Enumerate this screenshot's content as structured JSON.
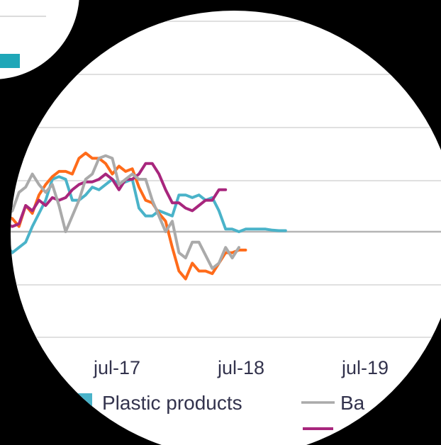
{
  "chart_data": {
    "type": "line",
    "x_ticks": [
      "jul-17",
      "jul-18",
      "jul-19"
    ],
    "grid": true,
    "legend_position": "bottom",
    "series": [
      {
        "name": "Plastic products",
        "color": "#4ab3c9",
        "points": [
          [
            0,
            -2.5
          ],
          [
            0.5,
            -4
          ],
          [
            1,
            -3
          ],
          [
            1.5,
            -2
          ],
          [
            2,
            1
          ],
          [
            2.5,
            3.5
          ],
          [
            3,
            6
          ],
          [
            3.5,
            10
          ],
          [
            4,
            10.5
          ],
          [
            4.5,
            10
          ],
          [
            5,
            6
          ],
          [
            5.5,
            6
          ],
          [
            6,
            7
          ],
          [
            6.5,
            8.5
          ],
          [
            7,
            8
          ],
          [
            7.5,
            9
          ],
          [
            8,
            10
          ],
          [
            8.5,
            9
          ],
          [
            9,
            9.5
          ],
          [
            9.5,
            10
          ],
          [
            10,
            4.5
          ],
          [
            10.5,
            3
          ],
          [
            11,
            3
          ],
          [
            11.5,
            4
          ],
          [
            12,
            3.5
          ],
          [
            12.5,
            3
          ],
          [
            13,
            7
          ],
          [
            13.5,
            7
          ],
          [
            14,
            6.5
          ],
          [
            14.5,
            7
          ],
          [
            15,
            6
          ],
          [
            15.5,
            6.5
          ],
          [
            16,
            4
          ],
          [
            16.5,
            0.5
          ],
          [
            17,
            0.5
          ],
          [
            17.5,
            0
          ],
          [
            18,
            0.5
          ],
          [
            18.5,
            0.5
          ],
          [
            19,
            0.5
          ],
          [
            19.5,
            0.5
          ],
          [
            20,
            0.3
          ],
          [
            20.5,
            0.2
          ],
          [
            21,
            0.2
          ]
        ]
      },
      {
        "name": "",
        "color": "#ff6b1a",
        "points": [
          [
            0,
            3
          ],
          [
            0.5,
            2.5
          ],
          [
            1,
            1
          ],
          [
            1.5,
            5
          ],
          [
            2,
            3.5
          ],
          [
            2.5,
            7
          ],
          [
            3,
            9
          ],
          [
            3.5,
            10.5
          ],
          [
            4,
            11.5
          ],
          [
            4.5,
            11.5
          ],
          [
            5,
            11
          ],
          [
            5.5,
            14
          ],
          [
            6,
            15
          ],
          [
            6.5,
            14
          ],
          [
            7,
            14
          ],
          [
            7.5,
            13
          ],
          [
            8,
            11
          ],
          [
            8.5,
            12.5
          ],
          [
            9,
            11.5
          ],
          [
            9.5,
            12
          ],
          [
            10,
            8.5
          ],
          [
            10.5,
            6
          ],
          [
            11,
            5.5
          ],
          [
            11.5,
            3.5
          ],
          [
            12,
            2
          ],
          [
            12.5,
            -3
          ],
          [
            13,
            -7.5
          ],
          [
            13.5,
            -9
          ],
          [
            14,
            -6
          ],
          [
            14.5,
            -7.5
          ],
          [
            15,
            -7.5
          ],
          [
            15.5,
            -8
          ],
          [
            16,
            -6
          ],
          [
            16.5,
            -4
          ],
          [
            17,
            -4
          ],
          [
            17.5,
            -3.5
          ],
          [
            18,
            -3.5
          ]
        ]
      },
      {
        "name": "",
        "color": "#a8267d",
        "points": [
          [
            0,
            1.5
          ],
          [
            0.5,
            1
          ],
          [
            1,
            1.5
          ],
          [
            1.5,
            5
          ],
          [
            2,
            4
          ],
          [
            2.5,
            6
          ],
          [
            3,
            5
          ],
          [
            3.5,
            6.5
          ],
          [
            4,
            6
          ],
          [
            4.5,
            6.5
          ],
          [
            5,
            8
          ],
          [
            5.5,
            9
          ],
          [
            6,
            9.5
          ],
          [
            6.5,
            9.5
          ],
          [
            7,
            10
          ],
          [
            7.5,
            11
          ],
          [
            8,
            10
          ],
          [
            8.5,
            8
          ],
          [
            9,
            10
          ],
          [
            9.5,
            10
          ],
          [
            10,
            11
          ],
          [
            10.5,
            13
          ],
          [
            11,
            13
          ],
          [
            11.5,
            11
          ],
          [
            12,
            8
          ],
          [
            12.5,
            5.5
          ],
          [
            13,
            5.5
          ],
          [
            13.5,
            4.5
          ],
          [
            14,
            4
          ],
          [
            14.5,
            5
          ],
          [
            15,
            6
          ],
          [
            15.5,
            6
          ],
          [
            16,
            8
          ],
          [
            16.5,
            8
          ]
        ]
      },
      {
        "name": "Ba",
        "color": "#aaaaaa",
        "points": [
          [
            0,
            3
          ],
          [
            0.5,
            4
          ],
          [
            1,
            7.5
          ],
          [
            1.5,
            8.5
          ],
          [
            2,
            11
          ],
          [
            2.5,
            9
          ],
          [
            3,
            7.5
          ],
          [
            3.5,
            9
          ],
          [
            4,
            5
          ],
          [
            4.5,
            0
          ],
          [
            5,
            3
          ],
          [
            5.5,
            6
          ],
          [
            6,
            10
          ],
          [
            6.5,
            11
          ],
          [
            7,
            14
          ],
          [
            7.5,
            14.5
          ],
          [
            8,
            14
          ],
          [
            8.5,
            9
          ],
          [
            9,
            10
          ],
          [
            9.5,
            11
          ],
          [
            10,
            10
          ],
          [
            10.5,
            10
          ],
          [
            11,
            6
          ],
          [
            11.5,
            3
          ],
          [
            12,
            0
          ],
          [
            12.5,
            2
          ],
          [
            13,
            -4
          ],
          [
            13.5,
            -5
          ],
          [
            14,
            -2
          ],
          [
            14.5,
            -2
          ],
          [
            15,
            -4.5
          ],
          [
            15.5,
            -7
          ],
          [
            16,
            -6
          ],
          [
            16.5,
            -3
          ],
          [
            17,
            -5
          ],
          [
            17.5,
            -3
          ]
        ]
      }
    ]
  }
}
